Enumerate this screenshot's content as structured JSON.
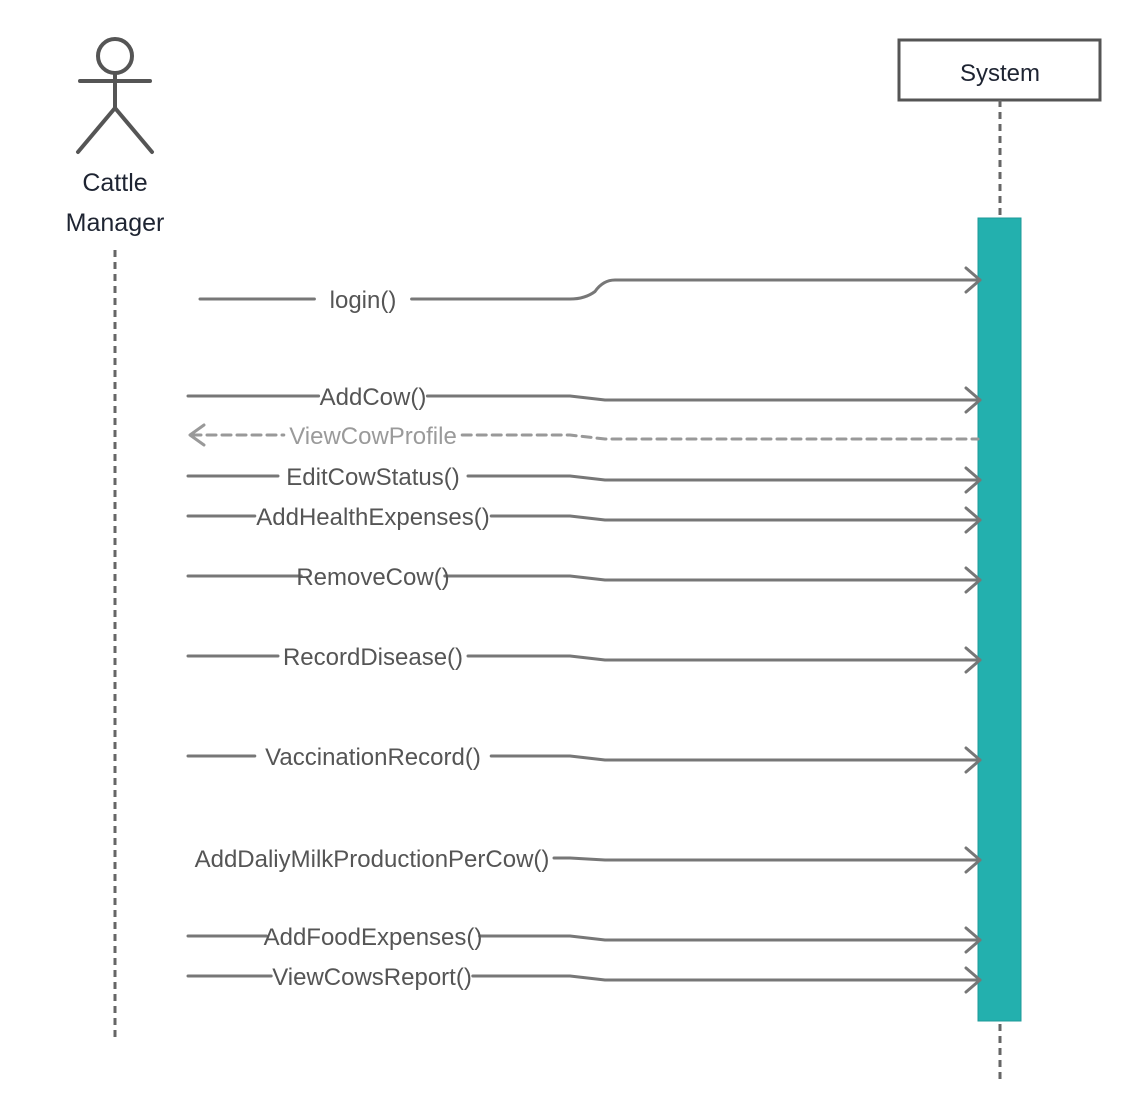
{
  "actor": {
    "name_line1": "Cattle",
    "name_line2": "Manager"
  },
  "system": {
    "name": "System"
  },
  "messages": [
    {
      "label": "login()",
      "kind": "call"
    },
    {
      "label": "AddCow()",
      "kind": "call"
    },
    {
      "label": "ViewCowProfile",
      "kind": "reply"
    },
    {
      "label": "EditCowStatus()",
      "kind": "call"
    },
    {
      "label": "AddHealthExpenses()",
      "kind": "call"
    },
    {
      "label": "RemoveCow()",
      "kind": "call"
    },
    {
      "label": "RecordDisease()",
      "kind": "call"
    },
    {
      "label": "VaccinationRecord()",
      "kind": "call"
    },
    {
      "label": "AddDaliyMilkProductionPerCow()",
      "kind": "call"
    },
    {
      "label": "AddFoodExpenses()",
      "kind": "call"
    },
    {
      "label": "ViewCowsReport()",
      "kind": "call"
    }
  ],
  "colors": {
    "activation": "#23b0ae",
    "line": "#777777",
    "reply": "#999999"
  }
}
